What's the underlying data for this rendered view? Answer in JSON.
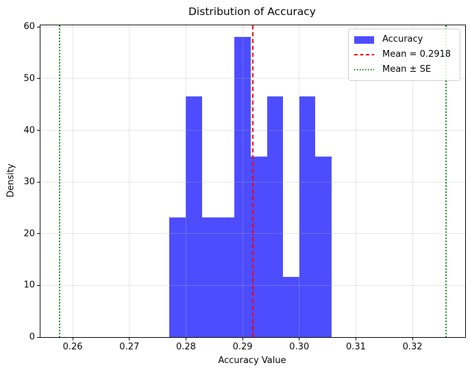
{
  "chart_data": {
    "type": "bar",
    "kind": "histogram",
    "title": "Distribution of Accuracy",
    "xlabel": "Accuracy Value",
    "ylabel": "Density",
    "xlim": [
      0.2543,
      0.3293
    ],
    "ylim": [
      0,
      60.3
    ],
    "grid": {
      "show": true,
      "color": "#b0b0b0",
      "alpha": 0.3
    },
    "x_ticks": [
      {
        "value": 0.26,
        "label": "0.26"
      },
      {
        "value": 0.27,
        "label": "0.27"
      },
      {
        "value": 0.28,
        "label": "0.28"
      },
      {
        "value": 0.29,
        "label": "0.29"
      },
      {
        "value": 0.3,
        "label": "0.30"
      },
      {
        "value": 0.31,
        "label": "0.31"
      },
      {
        "value": 0.32,
        "label": "0.32"
      }
    ],
    "y_ticks": [
      {
        "value": 0,
        "label": "0"
      },
      {
        "value": 10,
        "label": "10"
      },
      {
        "value": 20,
        "label": "20"
      },
      {
        "value": 30,
        "label": "30"
      },
      {
        "value": 40,
        "label": "40"
      },
      {
        "value": 50,
        "label": "50"
      },
      {
        "value": 60,
        "label": "60"
      }
    ],
    "bin_edges": [
      0.2771,
      0.28,
      0.2828,
      0.2857,
      0.2885,
      0.2914,
      0.2943,
      0.2971,
      0.3,
      0.3028,
      0.3057
    ],
    "densities": [
      23.2,
      46.5,
      23.2,
      23.2,
      58.1,
      34.9,
      46.5,
      11.6,
      46.5,
      34.9
    ],
    "bar_color": "#4d4dff",
    "mean_line": {
      "value": 0.2918,
      "color": "#ff0000",
      "style": "dashed"
    },
    "se_lines": {
      "values": [
        0.2577,
        0.3259
      ],
      "color": "#008000",
      "style": "dotted"
    },
    "legend": {
      "position": "upper-right",
      "entries": [
        {
          "label": "Accuracy",
          "handle": "patch",
          "color": "#4d4dff"
        },
        {
          "label": "Mean = 0.2918",
          "handle": "dashed-line",
          "color": "#ff0000"
        },
        {
          "label": "Mean ± SE",
          "handle": "dotted-line",
          "color": "#008000"
        }
      ]
    }
  }
}
